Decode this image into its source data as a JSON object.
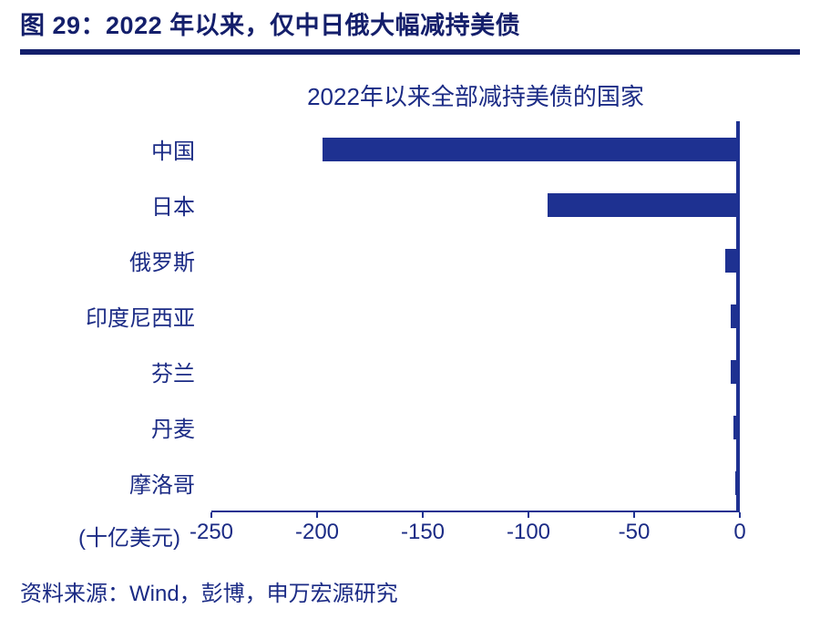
{
  "header": {
    "title": "图 29：2022 年以来，仅中日俄大幅减持美债"
  },
  "chart_data": {
    "type": "bar",
    "orientation": "horizontal",
    "title": "2022年以来全部减持美债的国家",
    "categories": [
      "中国",
      "日本",
      "俄罗斯",
      "印度尼西亚",
      "芬兰",
      "丹麦",
      "摩洛哥"
    ],
    "values": [
      -197,
      -90,
      -5,
      -2.5,
      -2.5,
      -1.2,
      -0.5
    ],
    "xlabel": "(十亿美元)",
    "xlim": [
      -250,
      0
    ],
    "xticks": [
      -250,
      -200,
      -150,
      -100,
      -50,
      0
    ],
    "grid": false,
    "legend": "none",
    "bar_color": "#1e3191",
    "axis_color": "#1e3191"
  },
  "footer": {
    "source": "资料来源：Wind，彭博，申万宏源研究"
  },
  "colors": {
    "accent": "#1e3191",
    "title_text": "#141f6b",
    "body_text": "#1b2b85"
  }
}
